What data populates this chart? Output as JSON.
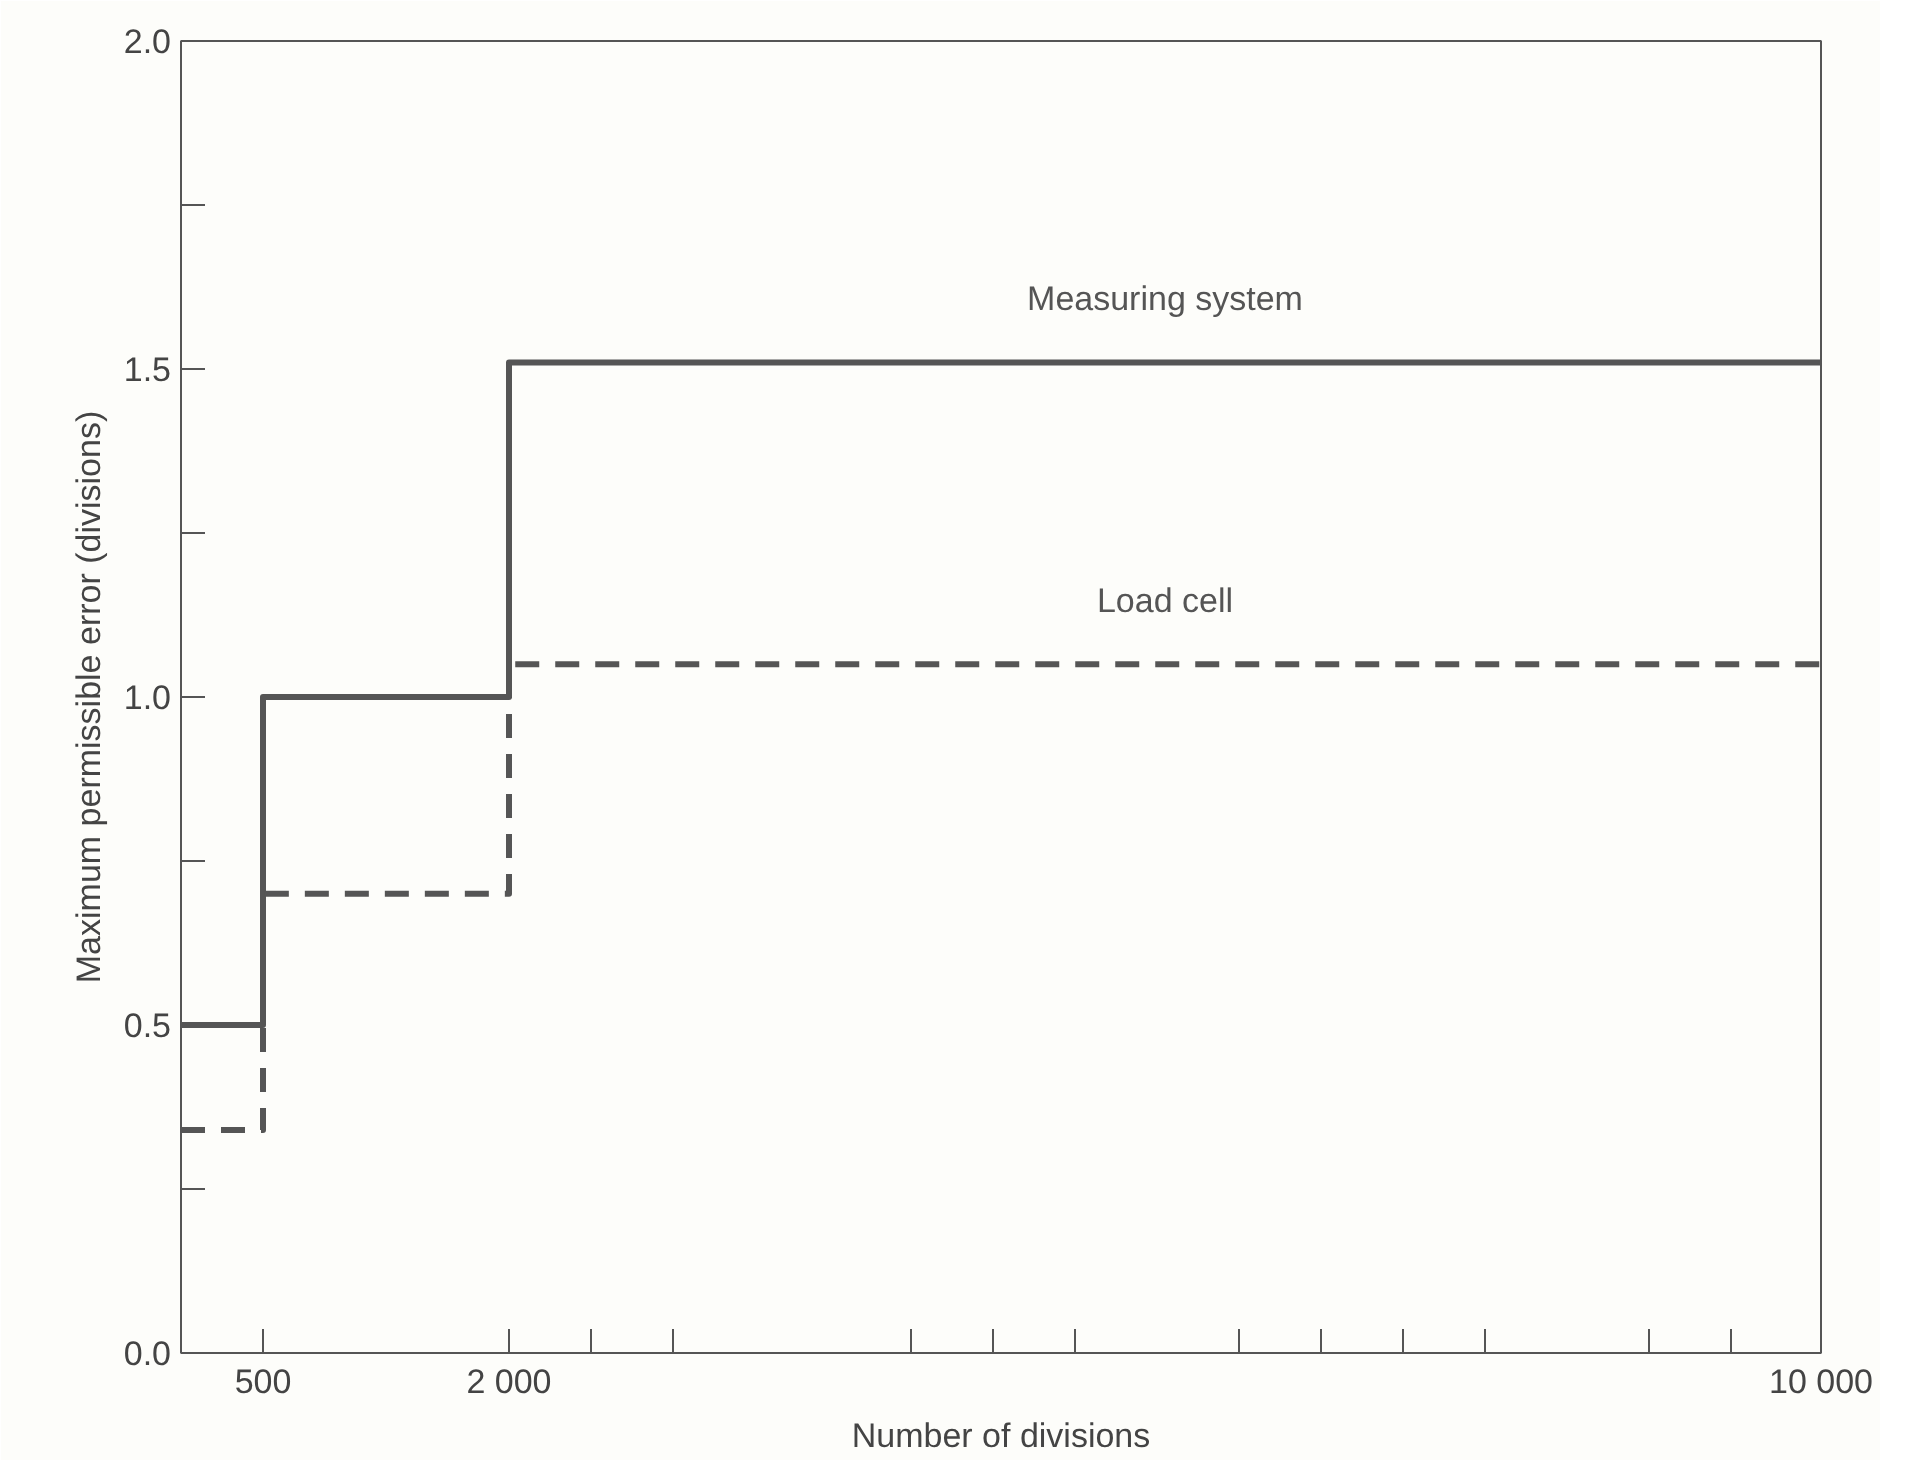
{
  "chart_data": {
    "type": "step",
    "xlabel": "Number of divisions",
    "ylabel": "Maximum permissible error (divisions)",
    "x": [
      0,
      500,
      2000,
      10000
    ],
    "series": [
      {
        "name": "Measuring system",
        "color": "#555555",
        "line_style": "solid",
        "values": [
          0.5,
          1.0,
          1.51,
          1.51
        ]
      },
      {
        "name": "Load cell",
        "color": "#555555",
        "line_style": "dashed",
        "values": [
          0.34,
          0.7,
          1.05,
          1.05
        ]
      }
    ],
    "xlim": [
      0,
      10000
    ],
    "xticks": [
      {
        "value": 500,
        "label": "500"
      },
      {
        "value": 2000,
        "label": "2 000"
      },
      {
        "value": 2500,
        "label": null
      },
      {
        "value": 3000,
        "label": null
      },
      {
        "value": 4450,
        "label": null
      },
      {
        "value": 4950,
        "label": null
      },
      {
        "value": 5450,
        "label": null
      },
      {
        "value": 6450,
        "label": null
      },
      {
        "value": 6950,
        "label": null
      },
      {
        "value": 7450,
        "label": null
      },
      {
        "value": 7950,
        "label": null
      },
      {
        "value": 8950,
        "label": null
      },
      {
        "value": 9450,
        "label": null
      },
      {
        "value": 10000,
        "label": "10 000"
      }
    ],
    "ylim": [
      0,
      2.0
    ],
    "yticks": [
      {
        "value": 0,
        "label": "0.0"
      },
      {
        "value": 0.25,
        "label": null
      },
      {
        "value": 0.5,
        "label": "0.5"
      },
      {
        "value": 0.75,
        "label": null
      },
      {
        "value": 1.0,
        "label": "1.0"
      },
      {
        "value": 1.25,
        "label": null
      },
      {
        "value": 1.5,
        "label": "1.5"
      },
      {
        "value": 1.75,
        "label": null
      },
      {
        "value": 2.0,
        "label": "2.0"
      }
    ],
    "grid": false
  }
}
